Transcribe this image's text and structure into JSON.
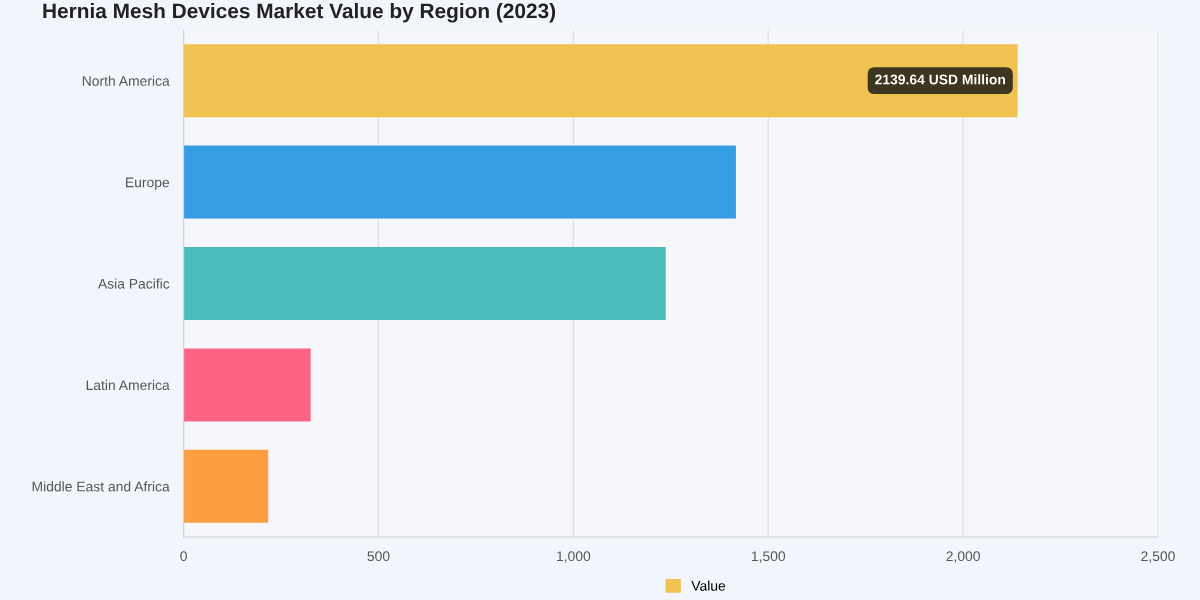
{
  "chart_data": {
    "type": "bar",
    "orientation": "horizontal",
    "title": "Hernia Mesh Devices Market Value by Region (2023)",
    "categories": [
      "North America",
      "Europe",
      "Asia Pacific",
      "Latin America",
      "Middle East and Africa"
    ],
    "series": [
      {
        "name": "Value",
        "color": "#f0c350",
        "colors": [
          "#f0c350",
          "#369ce4",
          "#4bbbbb",
          "#fd6384",
          "#fb9f40"
        ],
        "values": [
          2139.64,
          1417,
          1237,
          326,
          217
        ]
      }
    ],
    "xlim": [
      0,
      2500
    ],
    "xticks": [
      0,
      {
        "value": 500,
        "label": "500"
      },
      {
        "value": 1000,
        "label": "1,000"
      },
      {
        "value": 1500,
        "label": "1,500"
      },
      {
        "value": 2000,
        "label": "2,000"
      },
      {
        "value": 2500,
        "label": "2,500"
      }
    ],
    "grid": "x",
    "legend": "bottom",
    "annotations": [
      {
        "text": "2139.64 USD Million",
        "x": 2139.64,
        "y": "North America"
      }
    ]
  }
}
